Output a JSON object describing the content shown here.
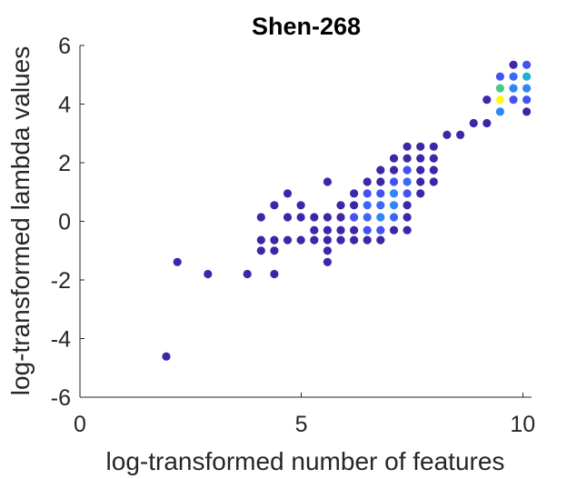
{
  "chart_data": {
    "type": "scatter",
    "title": "Shen-268",
    "xlabel": "log-transformed number of features",
    "ylabel": "log-transformed lambda values",
    "xlim": [
      0,
      10.2
    ],
    "ylim": [
      -6,
      6
    ],
    "xticks": [
      0,
      5,
      10
    ],
    "yticks": [
      -6,
      -4,
      -2,
      0,
      2,
      4,
      6
    ],
    "grid": false,
    "colormap": [
      "#3e26a8",
      "#4352f2",
      "#2e87f7",
      "#1db1d8",
      "#48cb86",
      "#d4bb2b",
      "#f9fb14"
    ],
    "default_color": "#3e26a8",
    "points": [
      {
        "x": 1.95,
        "y": -4.61
      },
      {
        "x": 2.2,
        "y": -1.39
      },
      {
        "x": 2.89,
        "y": -1.8
      },
      {
        "x": 3.78,
        "y": -1.8
      },
      {
        "x": 4.09,
        "y": 0.14
      },
      {
        "x": 4.09,
        "y": -0.64
      },
      {
        "x": 4.09,
        "y": -1.0
      },
      {
        "x": 4.39,
        "y": -1.8
      },
      {
        "x": 4.39,
        "y": 0.55
      },
      {
        "x": 4.39,
        "y": -0.64
      },
      {
        "x": 4.39,
        "y": -1.0
      },
      {
        "x": 4.69,
        "y": 0.95
      },
      {
        "x": 4.69,
        "y": 0.14
      },
      {
        "x": 4.69,
        "y": -0.64
      },
      {
        "x": 4.99,
        "y": 0.55
      },
      {
        "x": 4.99,
        "y": 0.14
      },
      {
        "x": 4.99,
        "y": -0.64
      },
      {
        "x": 5.29,
        "y": 0.14
      },
      {
        "x": 5.29,
        "y": -0.3
      },
      {
        "x": 5.29,
        "y": -0.64
      },
      {
        "x": 5.59,
        "y": 1.35
      },
      {
        "x": 5.59,
        "y": 0.14
      },
      {
        "x": 5.59,
        "y": -0.3
      },
      {
        "x": 5.59,
        "y": -0.64
      },
      {
        "x": 5.59,
        "y": -1.0
      },
      {
        "x": 5.59,
        "y": -1.39
      },
      {
        "x": 5.89,
        "y": 0.55
      },
      {
        "x": 5.89,
        "y": 0.14
      },
      {
        "x": 5.89,
        "y": -0.3
      },
      {
        "x": 5.89,
        "y": -0.64
      },
      {
        "x": 6.19,
        "y": 0.95
      },
      {
        "x": 6.19,
        "y": 0.55
      },
      {
        "x": 6.19,
        "y": 0.14
      },
      {
        "x": 6.19,
        "y": -0.3
      },
      {
        "x": 6.19,
        "y": -0.64
      },
      {
        "x": 6.49,
        "y": 1.35
      },
      {
        "x": 6.49,
        "y": 0.95
      },
      {
        "x": 6.49,
        "y": 0.55
      },
      {
        "x": 6.49,
        "y": 0.14
      },
      {
        "x": 6.49,
        "y": -0.3
      },
      {
        "x": 6.49,
        "y": -0.64
      },
      {
        "x": 6.79,
        "y": 1.75
      },
      {
        "x": 6.79,
        "y": 1.35
      },
      {
        "x": 6.79,
        "y": 0.95
      },
      {
        "x": 6.79,
        "y": 0.55
      },
      {
        "x": 6.79,
        "y": 0.14
      },
      {
        "x": 6.79,
        "y": -0.3
      },
      {
        "x": 6.79,
        "y": -0.64
      },
      {
        "x": 7.09,
        "y": 1.75
      },
      {
        "x": 7.09,
        "y": 1.35
      },
      {
        "x": 7.09,
        "y": 0.95
      },
      {
        "x": 7.09,
        "y": 0.55
      },
      {
        "x": 7.09,
        "y": 0.14
      },
      {
        "x": 7.09,
        "y": -0.3
      },
      {
        "x": 7.39,
        "y": 1.75
      },
      {
        "x": 7.39,
        "y": 1.35
      },
      {
        "x": 7.39,
        "y": 0.95
      },
      {
        "x": 7.39,
        "y": 0.55
      },
      {
        "x": 7.39,
        "y": 0.14
      },
      {
        "x": 7.39,
        "y": -0.3
      },
      {
        "x": 7.69,
        "y": 1.75
      },
      {
        "x": 7.69,
        "y": 1.35
      },
      {
        "x": 7.69,
        "y": 0.95
      },
      {
        "x": 7.99,
        "y": 2.15
      },
      {
        "x": 7.99,
        "y": 1.75
      },
      {
        "x": 7.99,
        "y": 1.35
      },
      {
        "x": 7.69,
        "y": 2.15
      },
      {
        "x": 7.69,
        "y": 2.55
      },
      {
        "x": 7.39,
        "y": 2.15
      },
      {
        "x": 7.39,
        "y": 2.55
      },
      {
        "x": 7.09,
        "y": 2.15
      },
      {
        "x": 7.99,
        "y": 2.55
      },
      {
        "x": 8.29,
        "y": 2.95
      },
      {
        "x": 8.59,
        "y": 2.95
      },
      {
        "x": 8.89,
        "y": 3.35
      },
      {
        "x": 9.19,
        "y": 3.35
      },
      {
        "x": 9.19,
        "y": 4.15
      },
      {
        "x": 9.49,
        "y": 3.74
      },
      {
        "x": 9.49,
        "y": 4.15
      },
      {
        "x": 9.49,
        "y": 4.54
      },
      {
        "x": 9.49,
        "y": 4.94
      },
      {
        "x": 9.79,
        "y": 4.15
      },
      {
        "x": 9.79,
        "y": 4.54
      },
      {
        "x": 9.79,
        "y": 4.94
      },
      {
        "x": 9.79,
        "y": 5.34
      },
      {
        "x": 10.09,
        "y": 3.74
      },
      {
        "x": 10.09,
        "y": 4.15
      },
      {
        "x": 10.09,
        "y": 4.54
      },
      {
        "x": 10.09,
        "y": 4.94
      },
      {
        "x": 10.09,
        "y": 5.34
      }
    ],
    "highlighted": [
      {
        "x": 6.19,
        "y": 0.14,
        "color": "#4352f2"
      },
      {
        "x": 6.49,
        "y": 0.95,
        "color": "#4352f2"
      },
      {
        "x": 6.49,
        "y": 0.55,
        "color": "#3a6af5"
      },
      {
        "x": 6.49,
        "y": 0.14,
        "color": "#3a6af5"
      },
      {
        "x": 6.49,
        "y": -0.3,
        "color": "#4352f2"
      },
      {
        "x": 6.79,
        "y": 0.95,
        "color": "#4352f2"
      },
      {
        "x": 6.79,
        "y": 0.55,
        "color": "#3a6af5"
      },
      {
        "x": 6.79,
        "y": 0.14,
        "color": "#2e87f7"
      },
      {
        "x": 6.79,
        "y": -0.3,
        "color": "#4352f2"
      },
      {
        "x": 7.09,
        "y": 1.35,
        "color": "#4352f2"
      },
      {
        "x": 7.09,
        "y": 0.95,
        "color": "#2e87f7"
      },
      {
        "x": 7.09,
        "y": 0.55,
        "color": "#2e87f7"
      },
      {
        "x": 7.09,
        "y": 0.14,
        "color": "#3a6af5"
      },
      {
        "x": 7.39,
        "y": 1.75,
        "color": "#4352f2"
      },
      {
        "x": 7.39,
        "y": 1.35,
        "color": "#3a6af5"
      },
      {
        "x": 7.39,
        "y": 0.95,
        "color": "#4352f2"
      },
      {
        "x": 9.49,
        "y": 3.74,
        "color": "#2e87f7"
      },
      {
        "x": 9.49,
        "y": 4.15,
        "color": "#f9fb14"
      },
      {
        "x": 9.49,
        "y": 4.54,
        "color": "#48cb86"
      },
      {
        "x": 9.49,
        "y": 4.94,
        "color": "#4352f2"
      },
      {
        "x": 9.79,
        "y": 4.15,
        "color": "#4352f2"
      },
      {
        "x": 9.79,
        "y": 4.54,
        "color": "#2e87f7"
      },
      {
        "x": 9.79,
        "y": 4.94,
        "color": "#3a6af5"
      },
      {
        "x": 10.09,
        "y": 4.15,
        "color": "#4352f2"
      },
      {
        "x": 10.09,
        "y": 4.54,
        "color": "#2e87f7"
      },
      {
        "x": 10.09,
        "y": 4.94,
        "color": "#1db1d8"
      },
      {
        "x": 10.09,
        "y": 5.34,
        "color": "#4352f2"
      }
    ]
  }
}
